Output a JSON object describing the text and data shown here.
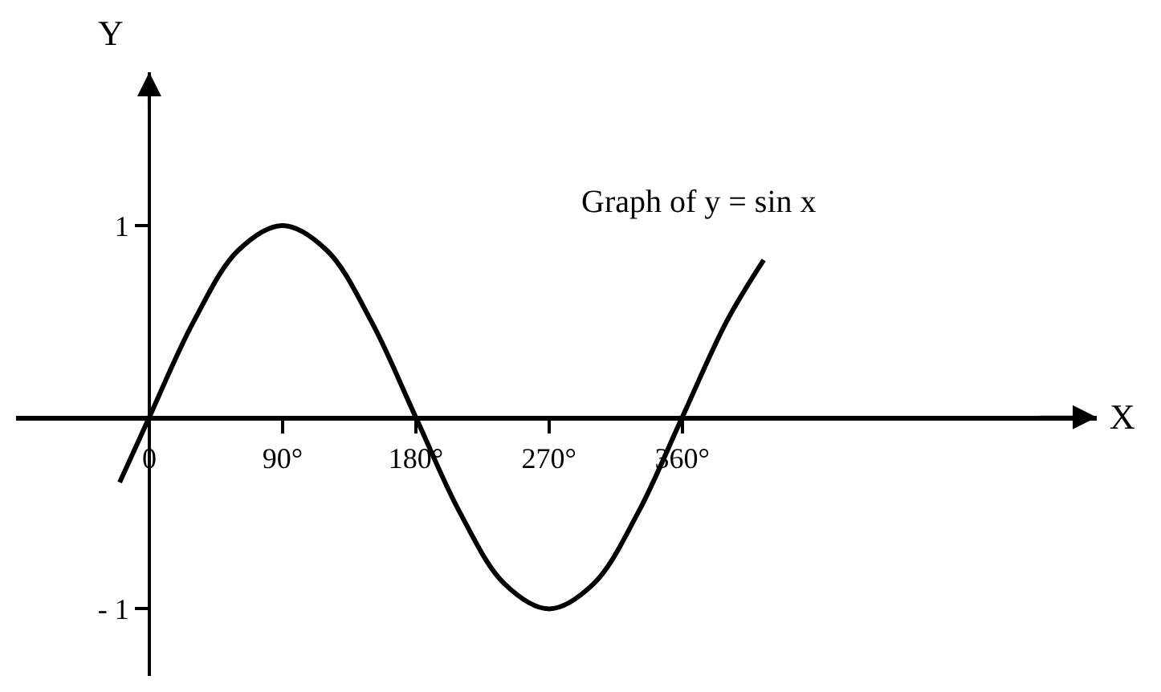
{
  "chart_data": {
    "type": "line",
    "xlabel": "X",
    "ylabel": "Y",
    "annotations": [
      "Graph of y = sin x"
    ],
    "x": [
      -20,
      0,
      30,
      60,
      90,
      120,
      150,
      180,
      210,
      240,
      270,
      300,
      330,
      360,
      390,
      415
    ],
    "series": [
      {
        "color": "#000000",
        "values": [
          -0.34,
          0,
          0.5,
          0.87,
          1,
          0.87,
          0.5,
          0,
          -0.5,
          -0.87,
          -1,
          -0.87,
          -0.5,
          0,
          0.5,
          0.82
        ]
      }
    ],
    "xlim": [
      -90,
      640
    ],
    "ylim": [
      -1.35,
      1.8
    ],
    "xticks": [
      {
        "value": 0,
        "label": "0"
      },
      {
        "value": 90,
        "label": "90°"
      },
      {
        "value": 180,
        "label": "180°"
      },
      {
        "value": 270,
        "label": "270°"
      },
      {
        "value": 360,
        "label": "360°"
      }
    ],
    "yticks": [
      1,
      {
        "value": -1,
        "label": "- 1"
      }
    ],
    "marker": "none",
    "line_style": "solid"
  }
}
